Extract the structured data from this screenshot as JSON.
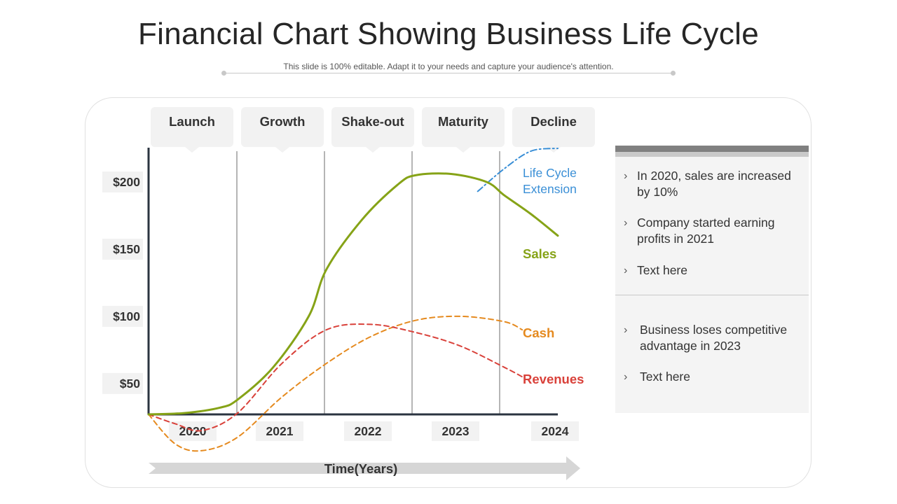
{
  "title": "Financial Chart Showing Business Life Cycle",
  "subtitle": "This slide is 100% editable. Adapt it to your needs and capture your audience's attention.",
  "chart_data": {
    "type": "line",
    "xlabel": "Time(Years)",
    "x_ticks": [
      "2020",
      "2021",
      "2022",
      "2023",
      "2024"
    ],
    "y_ticks": [
      "$50",
      "$100",
      "$150",
      "$200"
    ],
    "y_tick_values": [
      50,
      100,
      150,
      200
    ],
    "ylim": [
      27,
      225
    ],
    "xlim": [
      2020,
      2024.6
    ],
    "phases": [
      "Launch",
      "Growth",
      "Shake-out",
      "Maturity",
      "Decline"
    ],
    "series": [
      {
        "name": "Sales",
        "color": "#86a317",
        "style": "solid",
        "x": [
          2020,
          2020.4,
          2020.8,
          2021,
          2021.4,
          2021.8,
          2022,
          2022.4,
          2022.8,
          2023,
          2023.4,
          2023.8,
          2024,
          2024.3,
          2024.6
        ],
        "y": [
          27,
          28,
          32,
          38,
          62,
          100,
          135,
          172,
          198,
          205,
          206,
          200,
          190,
          176,
          160
        ]
      },
      {
        "name": "Cash",
        "color": "#e58a1f",
        "style": "dashed",
        "x": [
          2020,
          2020.3,
          2020.6,
          2021,
          2021.5,
          2022,
          2022.5,
          2023,
          2023.5,
          2024,
          2024.2
        ],
        "y": [
          27,
          5,
          0,
          10,
          40,
          65,
          85,
          97,
          100,
          96,
          90
        ]
      },
      {
        "name": "Revenues",
        "color": "#d9413a",
        "style": "dashed",
        "x": [
          2020,
          2020.3,
          2020.6,
          2021,
          2021.5,
          2022,
          2022.5,
          2023,
          2023.5,
          2024,
          2024.2
        ],
        "y": [
          27,
          20,
          15,
          28,
          65,
          90,
          94,
          88,
          78,
          62,
          55
        ]
      },
      {
        "name": "Life Cycle Extension",
        "color": "#3a8fd6",
        "style": "dashdot",
        "x": [
          2023.7,
          2024,
          2024.3,
          2024.6
        ],
        "y": [
          193,
          210,
          223,
          225
        ]
      }
    ]
  },
  "panel": {
    "group1": [
      "In 2020, sales are increased by 10%",
      "Company started earning profits in 2021",
      "Text here"
    ],
    "group2": [
      "Business loses competitive advantage in 2023",
      "Text here"
    ],
    "chevron": "›"
  }
}
